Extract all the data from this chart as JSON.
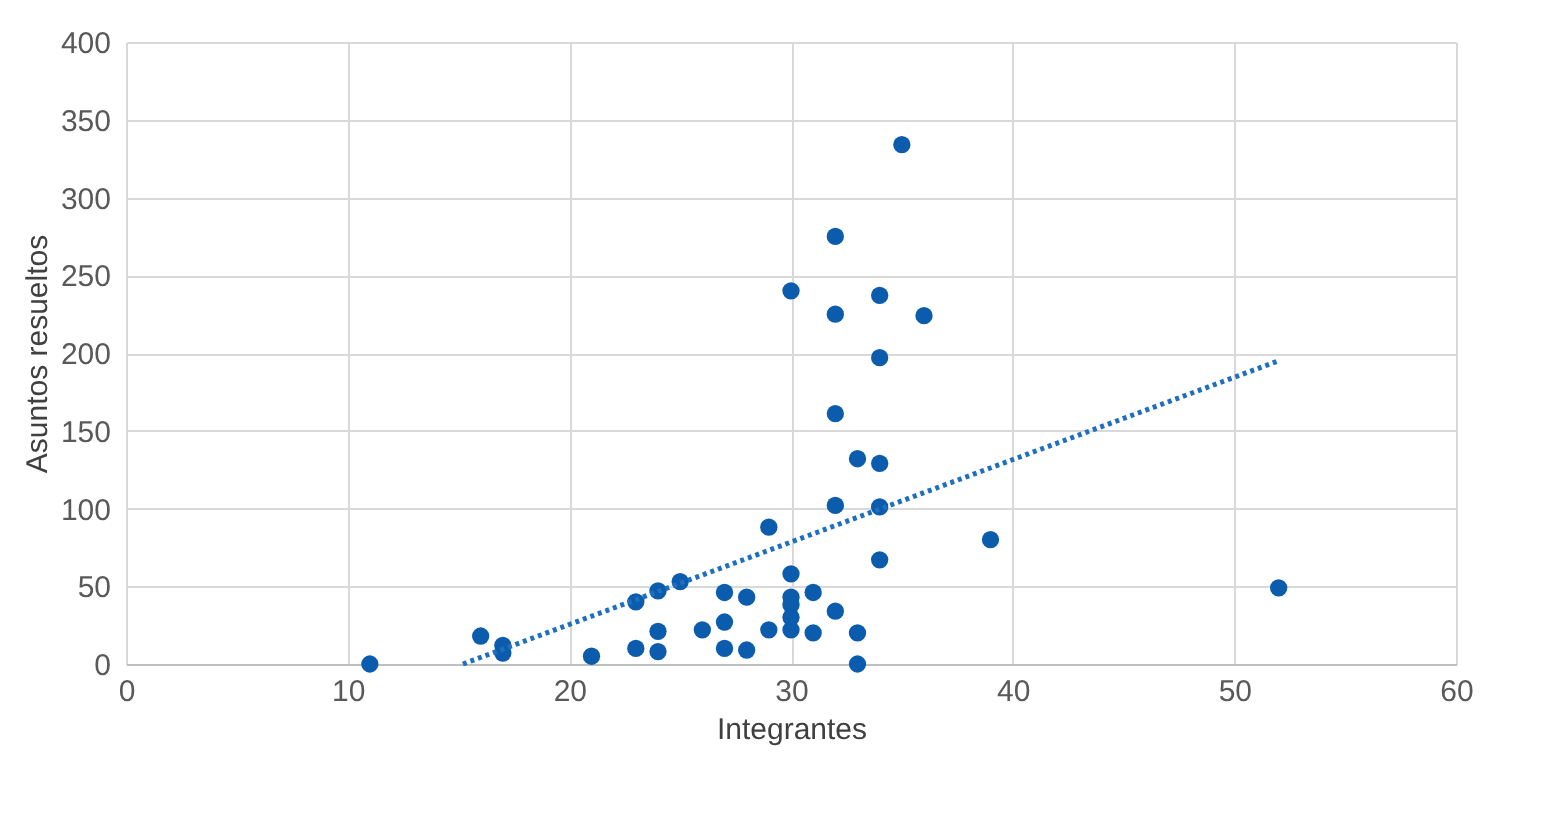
{
  "chart_data": {
    "type": "scatter",
    "xlabel": "Integrantes",
    "ylabel": "Asuntos resueltos",
    "xlim": [
      0,
      60
    ],
    "xticks": [
      0,
      10,
      20,
      30,
      40,
      50,
      60
    ],
    "ylim": [
      0,
      400
    ],
    "yticks": [
      0,
      50,
      100,
      150,
      200,
      250,
      300,
      350,
      400
    ],
    "grid": true,
    "marker": "circle",
    "series": [
      {
        "color": "#0b5cad",
        "x": [
          11,
          16,
          17,
          17,
          21,
          23,
          23,
          24,
          24,
          24,
          25,
          26,
          27,
          27,
          27,
          28,
          28,
          29,
          29,
          30,
          30,
          30,
          30,
          30,
          30,
          31,
          31,
          32,
          32,
          32,
          32,
          32,
          33,
          33,
          33,
          34,
          34,
          34,
          34,
          34,
          35,
          36,
          39,
          52
        ],
        "values": [
          0,
          18,
          12,
          7,
          5,
          10,
          40,
          21,
          8,
          47,
          53,
          22,
          27,
          10,
          46,
          43,
          9,
          88,
          22,
          58,
          43,
          38,
          30,
          22,
          240,
          46,
          20,
          102,
          161,
          225,
          275,
          34,
          20,
          0,
          132,
          237,
          197,
          129,
          101,
          67,
          334,
          224,
          80,
          49
        ]
      },
      {
        "type": "line",
        "marker": "none",
        "line_style": "dotted",
        "color": "#1f6fc1",
        "x": [
          15.2,
          52
        ],
        "values": [
          0,
          195
        ]
      }
    ]
  }
}
